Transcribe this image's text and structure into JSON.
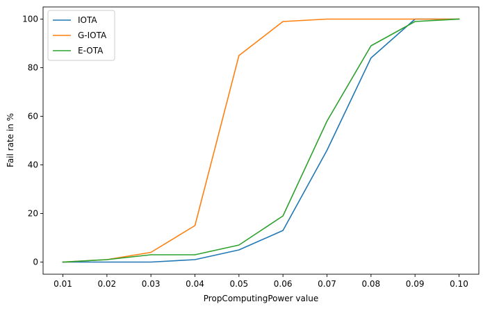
{
  "chart_data": {
    "type": "line",
    "title": "",
    "xlabel": "PropComputingPower value",
    "ylabel": "Fail rate in %",
    "x": [
      0.01,
      0.02,
      0.03,
      0.04,
      0.05,
      0.06,
      0.07,
      0.08,
      0.09,
      0.1
    ],
    "x_tick_labels": [
      "0.01",
      "0.02",
      "0.03",
      "0.04",
      "0.05",
      "0.06",
      "0.07",
      "0.08",
      "0.09",
      "0.10"
    ],
    "y_ticks": [
      0,
      20,
      40,
      60,
      80,
      100
    ],
    "xlim": [
      0.0055,
      0.1045
    ],
    "ylim": [
      -5,
      105
    ],
    "grid": false,
    "legend_placement": "top-left",
    "series": [
      {
        "name": "IOTA",
        "color": "#1f77b4",
        "values": [
          0,
          0,
          0,
          1,
          5,
          13,
          46,
          84,
          100,
          100
        ]
      },
      {
        "name": "G-IOTA",
        "color": "#ff7f0e",
        "values": [
          0,
          1,
          4,
          15,
          85,
          99,
          100,
          100,
          100,
          100
        ]
      },
      {
        "name": "E-OTA",
        "color": "#2ca02c",
        "values": [
          0,
          1,
          3,
          3,
          7,
          19,
          58,
          89,
          99,
          100
        ]
      }
    ]
  }
}
